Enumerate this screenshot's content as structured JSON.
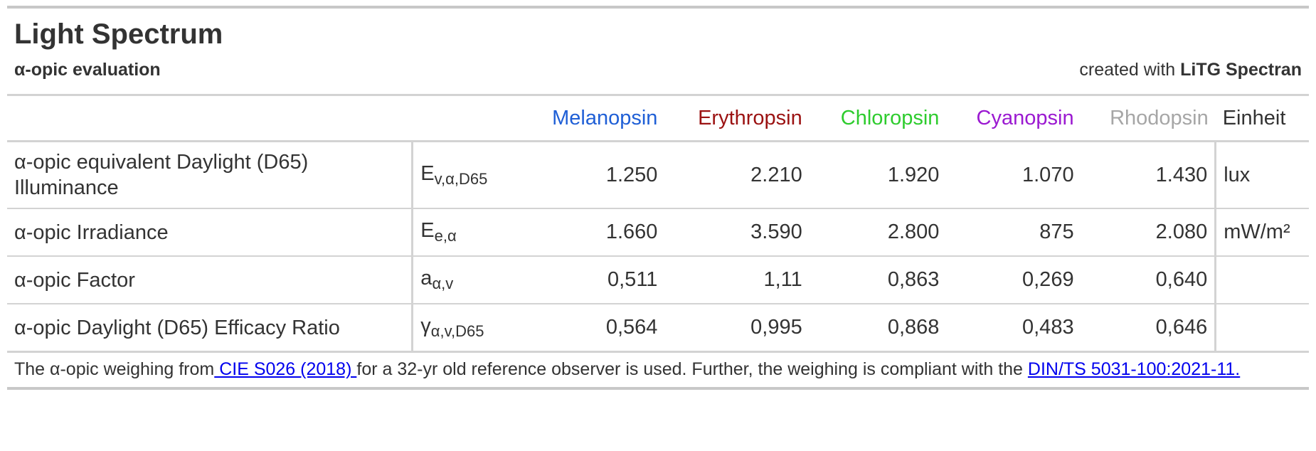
{
  "title": "Light Spectrum",
  "subtitle": "α-opic evaluation",
  "credit": {
    "prefix": "created with ",
    "brand": "LiTG Spectran"
  },
  "columns": [
    {
      "label": "Melanopsin",
      "color": "#1f5fd6"
    },
    {
      "label": "Erythropsin",
      "color": "#9b1212"
    },
    {
      "label": "Chloropsin",
      "color": "#2ecc2e"
    },
    {
      "label": "Cyanopsin",
      "color": "#9b19d1"
    },
    {
      "label": "Rhodopsin",
      "color": "#a6a6a6"
    }
  ],
  "unit_header": "Einheit",
  "rows": [
    {
      "label": "α-opic equivalent Daylight (D65) Illuminance",
      "symbol": "E",
      "sub": "v,α,D65",
      "values": [
        "1.250",
        "2.210",
        "1.920",
        "1.070",
        "1.430"
      ],
      "unit": "lux"
    },
    {
      "label": "α-opic Irradiance",
      "symbol": "E",
      "sub": "e,α",
      "values": [
        "1.660",
        "3.590",
        "2.800",
        "875",
        "2.080"
      ],
      "unit": "mW/m²"
    },
    {
      "label": "α-opic Factor",
      "symbol": "a",
      "sub": "α,v",
      "values": [
        "0,511",
        "1,11",
        "0,863",
        "0,269",
        "0,640"
      ],
      "unit": ""
    },
    {
      "label": "α-opic Daylight (D65) Efficacy Ratio",
      "symbol": "γ",
      "sub": "α,v,D65",
      "values": [
        "0,564",
        "0,995",
        "0,868",
        "0,483",
        "0,646"
      ],
      "unit": ""
    }
  ],
  "footnote": {
    "part1": "The α-opic weighing from",
    "link1": " CIE S026 (2018) ",
    "part2": "for a 32-yr old reference observer is used. Further, the weighing is compliant with the ",
    "link2": "DIN/TS 5031-100:2021-11."
  }
}
